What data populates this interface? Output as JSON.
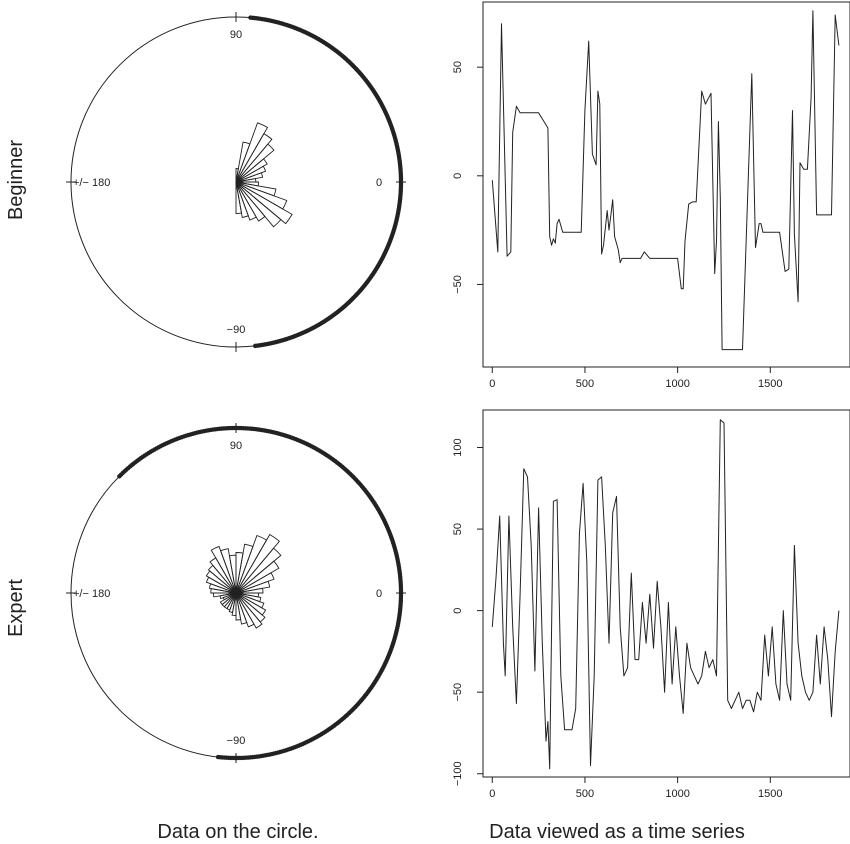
{
  "captions": {
    "left": "Data on the circle.",
    "right": "Data viewed as a time series"
  },
  "rows": [
    {
      "label": "Beginner",
      "circle": {
        "labels": {
          "top": "90",
          "right": "0",
          "bottom": "−90",
          "left": "+/− 180"
        },
        "points_deg": [
          85,
          83,
          80,
          78,
          75,
          72,
          70,
          68,
          66,
          64,
          62,
          60,
          58,
          56,
          54,
          52,
          50,
          48,
          46,
          44,
          42,
          40,
          38,
          36,
          34,
          32,
          30,
          28,
          26,
          24,
          22,
          20,
          18,
          16,
          14,
          12,
          10,
          8,
          6,
          4,
          2,
          0,
          -2,
          -4,
          -6,
          -8,
          -10,
          -12,
          -14,
          -16,
          -18,
          -20,
          -22,
          -24,
          -26,
          -28,
          -30,
          -32,
          -34,
          -36,
          -38,
          -40,
          -42,
          -44,
          -46,
          -48,
          -50,
          -52,
          -54,
          -56,
          -58,
          -60,
          -62,
          -64,
          -66,
          -68,
          -70,
          -72,
          -74,
          -76,
          -78,
          -80,
          -82,
          -84
        ],
        "rose": {
          "bin_start_deg": -90,
          "bin_width_deg": 10,
          "lengths": [
            0.35,
            0.4,
            0.45,
            0.5,
            0.65,
            0.72,
            0.6,
            0.45,
            0.25,
            0.22,
            0.3,
            0.35,
            0.4,
            0.55,
            0.62,
            0.7,
            0.45,
            0.15
          ]
        }
      },
      "timeseries": {
        "x_ticks": [
          0,
          500,
          1000,
          1500
        ],
        "y_ticks": [
          -50,
          0,
          50
        ],
        "xlim": [
          -50,
          1930
        ],
        "ylim": [
          -88,
          80
        ],
        "x": [
          0,
          30,
          50,
          80,
          100,
          110,
          130,
          150,
          200,
          250,
          300,
          310,
          320,
          330,
          340,
          350,
          360,
          380,
          400,
          420,
          450,
          480,
          500,
          520,
          540,
          560,
          570,
          580,
          590,
          600,
          620,
          630,
          640,
          650,
          660,
          680,
          690,
          700,
          750,
          800,
          820,
          850,
          900,
          950,
          1000,
          1020,
          1030,
          1040,
          1060,
          1080,
          1100,
          1130,
          1150,
          1180,
          1200,
          1210,
          1220,
          1230,
          1240,
          1260,
          1300,
          1350,
          1400,
          1420,
          1440,
          1450,
          1460,
          1500,
          1550,
          1580,
          1600,
          1620,
          1630,
          1650,
          1660,
          1680,
          1700,
          1720,
          1730,
          1750,
          1800,
          1830,
          1850,
          1870
        ],
        "y": [
          -2,
          -35,
          70,
          -37,
          -35,
          20,
          32,
          29,
          29,
          29,
          22,
          -28,
          -32,
          -29,
          -31,
          -22,
          -20,
          -26,
          -26,
          -26,
          -26,
          -26,
          30,
          62,
          10,
          5,
          39,
          33,
          -36,
          -32,
          -16,
          -25,
          -18,
          -11,
          -28,
          -34,
          -40,
          -38,
          -38,
          -38,
          -35,
          -38,
          -38,
          -38,
          -38,
          -52,
          -52,
          -30,
          -13,
          -12,
          -12,
          39,
          33,
          38,
          -45,
          -30,
          25,
          -10,
          -80,
          -80,
          -80,
          -80,
          47,
          -33,
          -22,
          -22,
          -26,
          -26,
          -26,
          -44,
          -43,
          30,
          -27,
          -58,
          6,
          3,
          3,
          36,
          76,
          -18,
          -18,
          -18,
          74,
          60
        ]
      }
    },
    {
      "label": "Expert",
      "circle": {
        "labels": {
          "top": "90",
          "right": "0",
          "bottom": "−90",
          "left": "+/− 180"
        },
        "points_deg": [
          135,
          130,
          126,
          122,
          118,
          114,
          110,
          106,
          102,
          98,
          95,
          92,
          89,
          86,
          83,
          80,
          77,
          74,
          71,
          68,
          65,
          62,
          59,
          56,
          53,
          50,
          47,
          44,
          41,
          38,
          35,
          32,
          29,
          26,
          23,
          20,
          17,
          14,
          11,
          8,
          5,
          2,
          -1,
          -4,
          -7,
          -10,
          -13,
          -16,
          -19,
          -22,
          -25,
          -28,
          -31,
          -34,
          -37,
          -40,
          -43,
          -46,
          -49,
          -52,
          -55,
          -58,
          -61,
          -64,
          -67,
          -70,
          -73,
          -76,
          -79,
          -82,
          -85,
          -88,
          -91,
          -94,
          -97
        ],
        "rose": {
          "bin_start_deg": -180,
          "bin_width_deg": 10,
          "lengths": [
            0.25,
            0.18,
            0.15,
            0.2,
            0.2,
            0.2,
            0.2,
            0.22,
            0.25,
            0.3,
            0.35,
            0.4,
            0.45,
            0.42,
            0.38,
            0.33,
            0.28,
            0.25,
            0.3,
            0.38,
            0.45,
            0.55,
            0.65,
            0.75,
            0.68,
            0.55,
            0.45,
            0.42,
            0.5,
            0.55,
            0.45,
            0.4,
            0.38,
            0.35,
            0.3,
            0.28
          ]
        }
      },
      "timeseries": {
        "x_ticks": [
          0,
          500,
          1000,
          1500
        ],
        "y_ticks": [
          -100,
          -50,
          0,
          50,
          100
        ],
        "xlim": [
          -50,
          1930
        ],
        "ylim": [
          -102,
          123
        ],
        "x": [
          0,
          20,
          40,
          60,
          70,
          90,
          110,
          130,
          150,
          170,
          190,
          210,
          230,
          250,
          270,
          290,
          300,
          310,
          320,
          330,
          350,
          370,
          390,
          410,
          430,
          450,
          470,
          490,
          510,
          530,
          550,
          570,
          590,
          610,
          630,
          650,
          670,
          690,
          710,
          730,
          750,
          770,
          790,
          810,
          830,
          850,
          870,
          890,
          910,
          930,
          950,
          970,
          990,
          1010,
          1030,
          1050,
          1070,
          1090,
          1110,
          1130,
          1150,
          1170,
          1190,
          1210,
          1230,
          1250,
          1270,
          1290,
          1310,
          1330,
          1350,
          1370,
          1390,
          1410,
          1430,
          1450,
          1470,
          1490,
          1510,
          1530,
          1550,
          1570,
          1590,
          1610,
          1630,
          1650,
          1670,
          1690,
          1710,
          1730,
          1750,
          1770,
          1790,
          1810,
          1830,
          1850,
          1870
        ],
        "y": [
          -10,
          20,
          58,
          -20,
          -40,
          58,
          -10,
          -57,
          10,
          87,
          82,
          40,
          -37,
          63,
          -20,
          -80,
          -68,
          -97,
          -10,
          67,
          68,
          -40,
          -73,
          -73,
          -73,
          -60,
          47,
          78,
          30,
          -95,
          -40,
          80,
          82,
          40,
          -20,
          60,
          70,
          -10,
          -40,
          -35,
          23,
          -30,
          -30,
          5,
          -20,
          10,
          -23,
          18,
          -10,
          -50,
          5,
          -45,
          -10,
          -40,
          -63,
          -20,
          -35,
          -40,
          -45,
          -40,
          -25,
          -35,
          -30,
          -40,
          117,
          115,
          -55,
          -60,
          -55,
          -50,
          -60,
          -55,
          -55,
          -62,
          -50,
          -55,
          -15,
          -40,
          -10,
          -45,
          -55,
          0,
          -45,
          -55,
          40,
          -20,
          -40,
          -50,
          -55,
          -50,
          -15,
          -45,
          -10,
          -30,
          -65,
          -25,
          0
        ]
      }
    }
  ]
}
